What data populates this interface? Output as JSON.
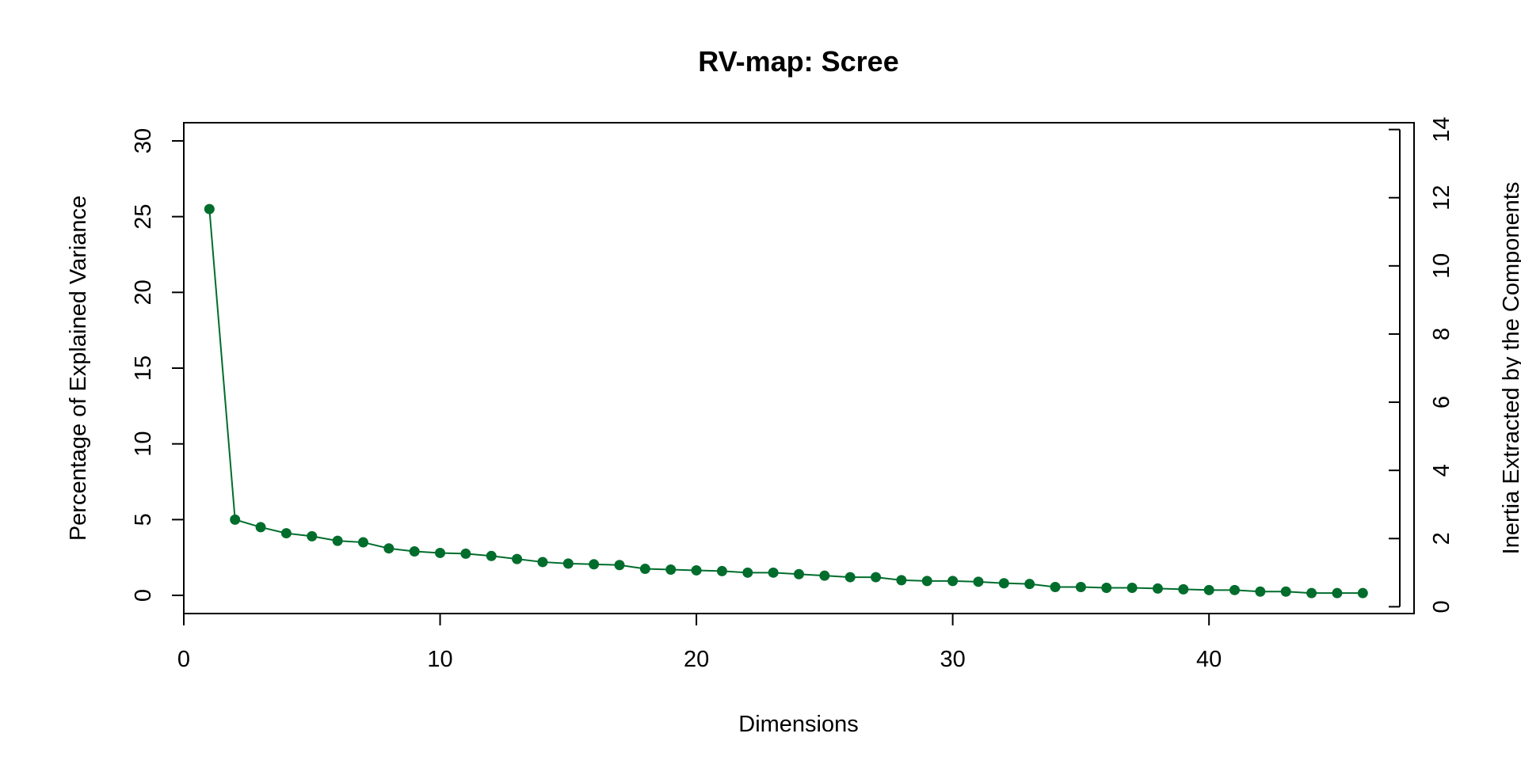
{
  "chart_data": {
    "type": "line",
    "title": "RV-map: Scree",
    "xlabel": "Dimensions",
    "ylabel": "Percentage of Explained Variance",
    "ylabel_right": "Inertia Extracted by the Components",
    "xlim": [
      0,
      48
    ],
    "ylim": [
      -1.2,
      31.2
    ],
    "ylim_right": [
      -0.2,
      14.2
    ],
    "x_ticks": [
      0,
      10,
      20,
      30,
      40
    ],
    "y_ticks": [
      0,
      5,
      10,
      15,
      20,
      25,
      30
    ],
    "y_ticks_right": [
      0,
      2,
      4,
      6,
      8,
      10,
      12,
      14
    ],
    "grid": false,
    "color": "#006d2c",
    "series": [
      {
        "x": [
          1,
          2,
          3,
          4,
          5,
          6,
          7,
          8,
          9,
          10,
          11,
          12,
          13,
          14,
          15,
          16,
          17,
          18,
          19,
          20,
          21,
          22,
          23,
          24,
          25,
          26,
          27,
          28,
          29,
          30,
          31,
          32,
          33,
          34,
          35,
          36,
          37,
          38,
          39,
          40,
          41,
          42,
          43,
          44,
          45,
          46
        ],
        "values": [
          25.5,
          5.0,
          4.5,
          4.1,
          3.9,
          3.6,
          3.5,
          3.1,
          2.9,
          2.8,
          2.75,
          2.6,
          2.4,
          2.2,
          2.1,
          2.05,
          2.0,
          1.75,
          1.7,
          1.65,
          1.6,
          1.5,
          1.5,
          1.4,
          1.3,
          1.2,
          1.2,
          1.0,
          0.95,
          0.95,
          0.9,
          0.8,
          0.75,
          0.55,
          0.55,
          0.5,
          0.5,
          0.45,
          0.4,
          0.35,
          0.35,
          0.25,
          0.25,
          0.15,
          0.15,
          0.15
        ]
      }
    ]
  }
}
